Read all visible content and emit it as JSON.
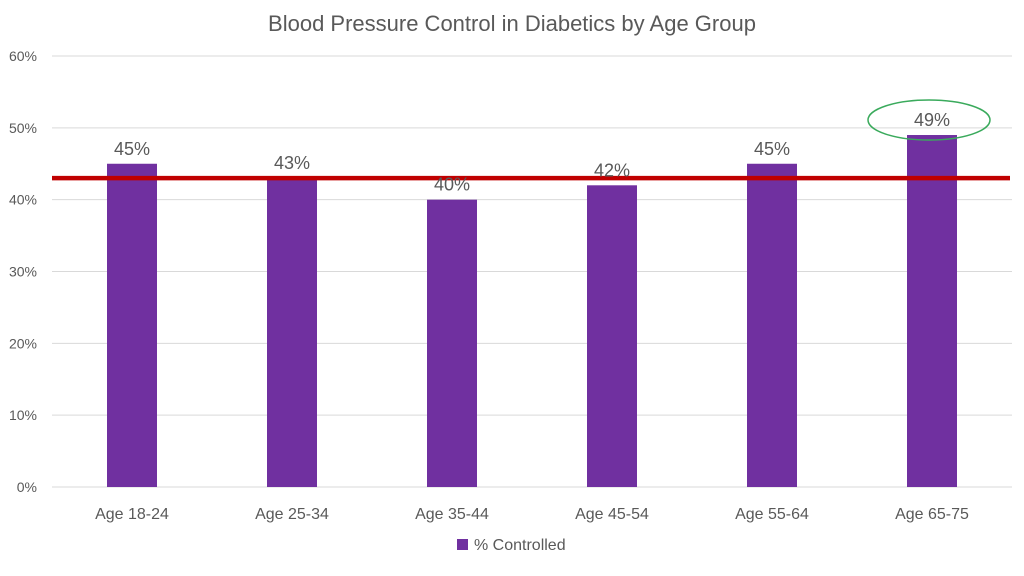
{
  "chart_data": {
    "type": "bar",
    "title": "Blood Pressure Control in Diabetics by Age Group",
    "categories": [
      "Age 18-24",
      "Age 25-34",
      "Age 35-44",
      "Age 45-54",
      "Age 55-64",
      "Age 65-75"
    ],
    "series": [
      {
        "name": "% Controlled",
        "values": [
          45,
          43,
          40,
          42,
          45,
          49
        ]
      }
    ],
    "data_labels": [
      "45%",
      "43%",
      "40%",
      "42%",
      "45%",
      "49%"
    ],
    "ylim": [
      0,
      60
    ],
    "yticks": [
      0,
      10,
      20,
      30,
      40,
      50,
      60
    ],
    "ytick_labels": [
      "0%",
      "10%",
      "20%",
      "30%",
      "40%",
      "50%",
      "60%"
    ],
    "xlabel": "",
    "ylabel": "",
    "reference_line": {
      "value": 43
    },
    "highlighted_category_index": 5,
    "grid": true,
    "legend_position": "bottom",
    "colors": {
      "bar": "#7030a0",
      "reference_line": "#c00000",
      "highlight": "#3aaa5c",
      "grid": "#d9d9d9",
      "text": "#595959",
      "title": "#595959"
    }
  }
}
